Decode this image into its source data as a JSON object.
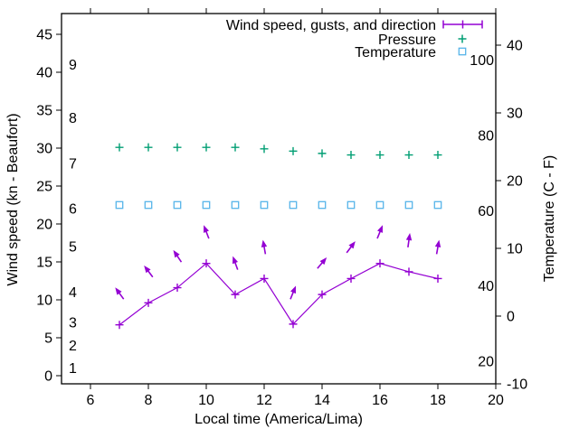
{
  "colors": {
    "wind": "#9400D3",
    "pressure": "#009E73",
    "temperature": "#56B4E9",
    "axis": "#000000",
    "background": "#ffffff"
  },
  "legend": {
    "position": "top-right-inside",
    "entries": [
      {
        "label": "Wind speed, gusts, and direction",
        "marker": "line-with-plus",
        "color": "#9400D3"
      },
      {
        "label": "Pressure",
        "marker": "plus",
        "color": "#009E73"
      },
      {
        "label": "Temperature",
        "marker": "open-square",
        "color": "#56B4E9"
      }
    ]
  },
  "chart_data": {
    "type": "line",
    "title": "",
    "xlabel": "Local time (America/Lima)",
    "ylabel_left": "Wind speed (kn - Beaufort)",
    "ylabel_right": "Temperature (C - F)",
    "grid": false,
    "legend_position": "top-right",
    "x_range": [
      5,
      20
    ],
    "x_axis": {
      "ticks": [
        6,
        8,
        10,
        12,
        14,
        16,
        18,
        20
      ]
    },
    "left_axis": {
      "unit_outer": "kn",
      "unit_inner": "Beaufort",
      "range_kn": [
        -1.1,
        47.7
      ],
      "ticks_kn": [
        0,
        5,
        10,
        15,
        20,
        25,
        30,
        35,
        40,
        45
      ],
      "beaufort": [
        {
          "beaufort": 1,
          "kn": 1
        },
        {
          "beaufort": 2,
          "kn": 4
        },
        {
          "beaufort": 3,
          "kn": 7
        },
        {
          "beaufort": 4,
          "kn": 11
        },
        {
          "beaufort": 5,
          "kn": 17
        },
        {
          "beaufort": 6,
          "kn": 22
        },
        {
          "beaufort": 7,
          "kn": 28
        },
        {
          "beaufort": 8,
          "kn": 34
        },
        {
          "beaufort": 9,
          "kn": 41
        }
      ]
    },
    "right_axis": {
      "unit_outer": "C",
      "unit_inner": "F",
      "range_c": [
        -10,
        44.7
      ],
      "ticks_c": [
        -10,
        0,
        10,
        20,
        30,
        40
      ],
      "inner_ticks_f": [
        20,
        40,
        60,
        80,
        100
      ]
    },
    "hours": [
      7,
      8,
      9,
      10,
      11,
      12,
      13,
      14,
      15,
      16,
      17,
      18
    ],
    "series": [
      {
        "name": "Wind speed, gusts, and direction",
        "type": "linespoints-with-direction-arrows",
        "color": "#9400D3",
        "axis": "left",
        "values_kn": [
          6.7,
          9.6,
          11.6,
          14.8,
          10.7,
          12.8,
          6.8,
          10.7,
          12.8,
          14.8,
          13.7,
          12.8
        ],
        "arrow_angles_deg_from_up": [
          -36,
          -37,
          -34,
          -21,
          -20,
          -10,
          22,
          40,
          37,
          22,
          8,
          10
        ]
      },
      {
        "name": "Pressure",
        "type": "points",
        "color": "#009E73",
        "axis": "left",
        "values_left_scale": [
          30.1,
          30.1,
          30.1,
          30.1,
          30.1,
          29.9,
          29.6,
          29.3,
          29.1,
          29.1,
          29.1,
          29.1
        ]
      },
      {
        "name": "Temperature",
        "type": "points",
        "color": "#56B4E9",
        "axis": "right",
        "values_c": [
          16.4,
          16.4,
          16.4,
          16.4,
          16.4,
          16.4,
          16.4,
          16.4,
          16.4,
          16.4,
          16.4,
          16.4
        ]
      }
    ]
  }
}
